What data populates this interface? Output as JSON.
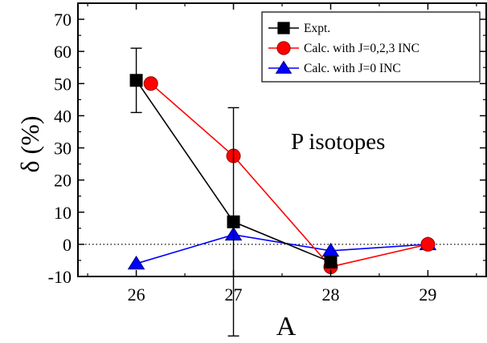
{
  "chart_data": {
    "type": "line",
    "title": "",
    "xlabel": "A",
    "ylabel": "δ (%)",
    "xlim": [
      25.4,
      29.6
    ],
    "ylim": [
      -10,
      75
    ],
    "x_ticks": [
      26,
      27,
      28,
      29
    ],
    "y_ticks": [
      -10,
      0,
      10,
      20,
      30,
      40,
      50,
      60,
      70
    ],
    "annotation": "P isotopes",
    "reference_line": {
      "y": 0,
      "style": "dotted"
    },
    "legend_position": "top-right",
    "grid": false,
    "series": [
      {
        "name": "Expt.",
        "color": "#000000",
        "marker": "square",
        "points": [
          {
            "x": 26,
            "y": 51,
            "err": 10
          },
          {
            "x": 27,
            "y": 7,
            "err": 35.5
          },
          {
            "x": 28,
            "y": -5.5,
            "err": 0
          }
        ]
      },
      {
        "name": "Calc. with J=0,2,3 INC",
        "color": "#ff0000",
        "marker": "circle",
        "points": [
          {
            "x": 26.15,
            "y": 50
          },
          {
            "x": 27,
            "y": 27.5
          },
          {
            "x": 28,
            "y": -7
          },
          {
            "x": 29,
            "y": 0
          }
        ]
      },
      {
        "name": "Calc. with J=0 INC",
        "color": "#0000ff",
        "marker": "triangle",
        "points": [
          {
            "x": 26,
            "y": -6
          },
          {
            "x": 27,
            "y": 3
          },
          {
            "x": 28,
            "y": -2
          },
          {
            "x": 29,
            "y": 0
          }
        ]
      }
    ]
  }
}
